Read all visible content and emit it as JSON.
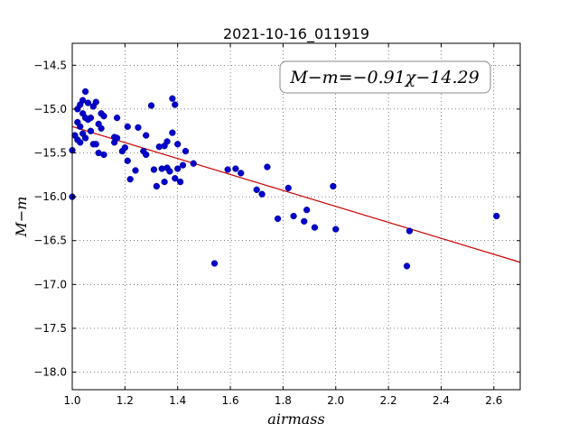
{
  "chart_data": {
    "type": "scatter",
    "title": "2021-10-16_011919",
    "xlabel": "airmass",
    "ylabel": "M−m",
    "xlim": [
      1.0,
      2.7
    ],
    "ylim": [
      -18.2,
      -14.25
    ],
    "y_inverted": true,
    "grid": true,
    "xticks": [
      1.0,
      1.2,
      1.4,
      1.6,
      1.8,
      2.0,
      2.2,
      2.4,
      2.6
    ],
    "xtick_labels": [
      "1.0",
      "1.2",
      "1.4",
      "1.6",
      "1.8",
      "2.0",
      "2.2",
      "2.4",
      "2.6"
    ],
    "yticks": [
      -14.5,
      -15.0,
      -15.5,
      -16.0,
      -16.5,
      -17.0,
      -17.5,
      -18.0
    ],
    "ytick_labels": [
      "−14.5",
      "−15.0",
      "−15.5",
      "−16.0",
      "−16.5",
      "−17.0",
      "−17.5",
      "−18.0"
    ],
    "fit_label": "M−m=−0.91χ−14.29",
    "fit": {
      "slope": -0.91,
      "intercept": -14.29,
      "color": "#cc0000"
    },
    "point_color": "#0000cc",
    "points": [
      {
        "x": 1.0,
        "y": -15.47
      },
      {
        "x": 1.0,
        "y": -16.0
      },
      {
        "x": 1.01,
        "y": -15.3
      },
      {
        "x": 1.02,
        "y": -15.0
      },
      {
        "x": 1.02,
        "y": -15.15
      },
      {
        "x": 1.02,
        "y": -15.35
      },
      {
        "x": 1.03,
        "y": -14.95
      },
      {
        "x": 1.03,
        "y": -15.2
      },
      {
        "x": 1.03,
        "y": -15.38
      },
      {
        "x": 1.04,
        "y": -14.9
      },
      {
        "x": 1.04,
        "y": -15.05
      },
      {
        "x": 1.04,
        "y": -15.28
      },
      {
        "x": 1.05,
        "y": -15.1
      },
      {
        "x": 1.05,
        "y": -15.33
      },
      {
        "x": 1.05,
        "y": -14.8
      },
      {
        "x": 1.06,
        "y": -14.93
      },
      {
        "x": 1.06,
        "y": -15.12
      },
      {
        "x": 1.07,
        "y": -15.1
      },
      {
        "x": 1.07,
        "y": -15.25
      },
      {
        "x": 1.08,
        "y": -15.4
      },
      {
        "x": 1.08,
        "y": -14.97
      },
      {
        "x": 1.09,
        "y": -14.92
      },
      {
        "x": 1.09,
        "y": -15.4
      },
      {
        "x": 1.1,
        "y": -15.17
      },
      {
        "x": 1.1,
        "y": -15.5
      },
      {
        "x": 1.11,
        "y": -15.05
      },
      {
        "x": 1.11,
        "y": -15.22
      },
      {
        "x": 1.12,
        "y": -15.52
      },
      {
        "x": 1.12,
        "y": -15.08
      },
      {
        "x": 1.16,
        "y": -15.32
      },
      {
        "x": 1.16,
        "y": -15.38
      },
      {
        "x": 1.17,
        "y": -15.1
      },
      {
        "x": 1.17,
        "y": -15.33
      },
      {
        "x": 1.19,
        "y": -15.48
      },
      {
        "x": 1.2,
        "y": -15.44
      },
      {
        "x": 1.21,
        "y": -15.2
      },
      {
        "x": 1.21,
        "y": -15.59
      },
      {
        "x": 1.22,
        "y": -15.8
      },
      {
        "x": 1.24,
        "y": -15.7
      },
      {
        "x": 1.25,
        "y": -15.21
      },
      {
        "x": 1.27,
        "y": -15.48
      },
      {
        "x": 1.28,
        "y": -15.52
      },
      {
        "x": 1.28,
        "y": -15.3
      },
      {
        "x": 1.3,
        "y": -14.96
      },
      {
        "x": 1.31,
        "y": -15.69
      },
      {
        "x": 1.32,
        "y": -15.88
      },
      {
        "x": 1.33,
        "y": -15.43
      },
      {
        "x": 1.34,
        "y": -15.68
      },
      {
        "x": 1.35,
        "y": -15.42
      },
      {
        "x": 1.35,
        "y": -15.83
      },
      {
        "x": 1.36,
        "y": -15.37
      },
      {
        "x": 1.36,
        "y": -15.67
      },
      {
        "x": 1.37,
        "y": -15.71
      },
      {
        "x": 1.38,
        "y": -15.27
      },
      {
        "x": 1.38,
        "y": -14.88
      },
      {
        "x": 1.39,
        "y": -14.95
      },
      {
        "x": 1.39,
        "y": -15.79
      },
      {
        "x": 1.4,
        "y": -15.68
      },
      {
        "x": 1.4,
        "y": -15.4
      },
      {
        "x": 1.41,
        "y": -15.83
      },
      {
        "x": 1.42,
        "y": -15.64
      },
      {
        "x": 1.43,
        "y": -15.48
      },
      {
        "x": 1.46,
        "y": -15.62
      },
      {
        "x": 1.54,
        "y": -16.76
      },
      {
        "x": 1.59,
        "y": -15.69
      },
      {
        "x": 1.62,
        "y": -15.68
      },
      {
        "x": 1.64,
        "y": -15.73
      },
      {
        "x": 1.7,
        "y": -15.92
      },
      {
        "x": 1.72,
        "y": -15.97
      },
      {
        "x": 1.74,
        "y": -15.66
      },
      {
        "x": 1.78,
        "y": -16.25
      },
      {
        "x": 1.82,
        "y": -15.9
      },
      {
        "x": 1.84,
        "y": -16.22
      },
      {
        "x": 1.88,
        "y": -16.28
      },
      {
        "x": 1.89,
        "y": -16.15
      },
      {
        "x": 1.92,
        "y": -16.35
      },
      {
        "x": 1.99,
        "y": -15.88
      },
      {
        "x": 2.0,
        "y": -16.37
      },
      {
        "x": 2.27,
        "y": -16.79
      },
      {
        "x": 2.28,
        "y": -16.39
      },
      {
        "x": 2.61,
        "y": -16.22
      }
    ]
  }
}
